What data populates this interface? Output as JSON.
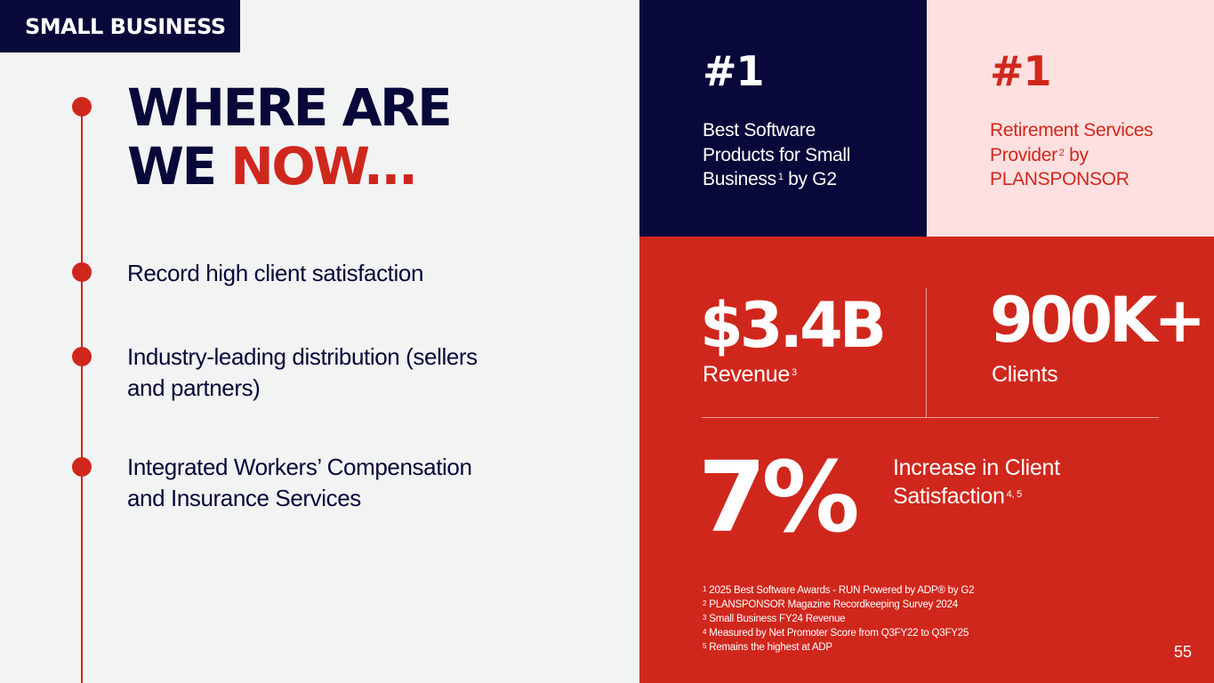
{
  "section_tag": "SMALL BUSINESS",
  "title": {
    "line1": "WHERE ARE",
    "line2_prefix": "WE ",
    "line2_highlight": "NOW..."
  },
  "bullets": [
    {
      "line1": "Record high client satisfaction",
      "line2": ""
    },
    {
      "line1": "Industry-leading distribution (sellers",
      "line2": "and partners)"
    },
    {
      "line1": "Integrated Workers’ Compensation",
      "line2": "and Insurance Services"
    }
  ],
  "awards": [
    {
      "rank": "#1",
      "line1": "Best Software",
      "line2": "Products for Small",
      "line3": "Business",
      "sup": "1",
      "line3_suffix": " by G2"
    },
    {
      "rank": "#1",
      "line1": "Retirement Services",
      "line2": "Provider",
      "sup": "2",
      "line2_suffix": " by",
      "line3": "PLANSPONSOR"
    }
  ],
  "stats": {
    "revenue": {
      "value": "$3.4B",
      "label": "Revenue",
      "sup": "3"
    },
    "clients": {
      "value": "900K+",
      "label": "Clients"
    },
    "satisfaction": {
      "value": "7%",
      "line1": "Increase in Client",
      "line2": "Satisfaction",
      "sup": "4, 5"
    }
  },
  "footnotes": [
    {
      "num": "1",
      "text": "2025 Best Software Awards - RUN Powered by ADP® by G2"
    },
    {
      "num": "2",
      "text": "PLANSPONSOR Magazine Recordkeeping Survey 2024"
    },
    {
      "num": "3",
      "text": "Small Business FY24 Revenue"
    },
    {
      "num": "4",
      "text": "Measured by Net Promoter Score from Q3FY22 to Q3FY25"
    },
    {
      "num": "5",
      "text": "Remains the highest at ADP"
    }
  ],
  "page_number": "55",
  "colors": {
    "navy": "#08083a",
    "red": "#d0271d",
    "pink": "#fde0df",
    "background": "#f2f3f3"
  }
}
